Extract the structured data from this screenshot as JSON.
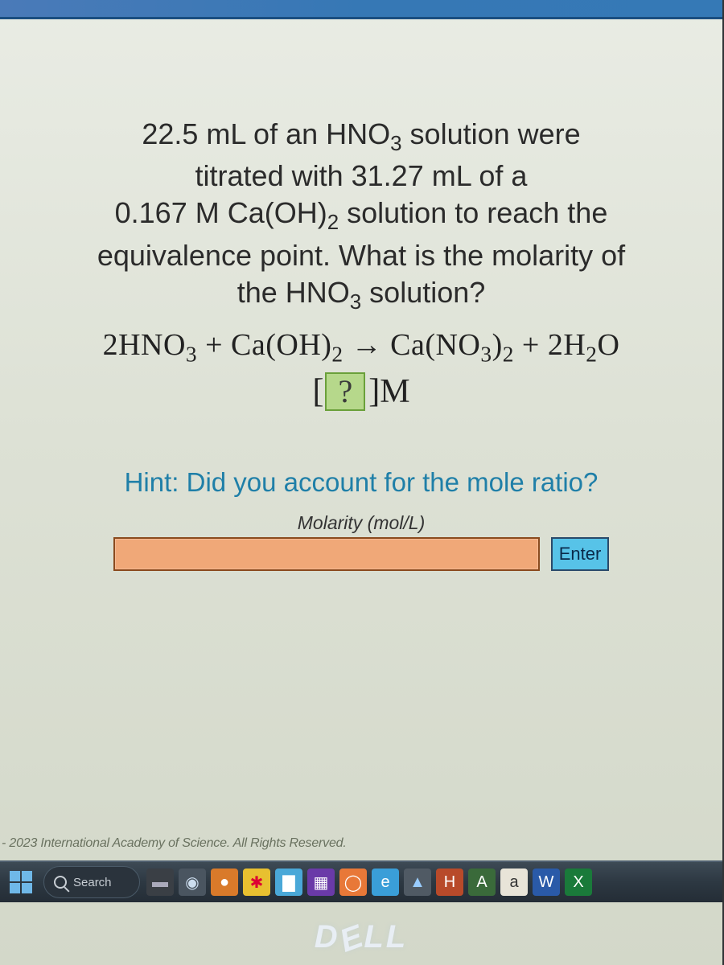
{
  "colors": {
    "card_bg_top": "#e9ece4",
    "card_bg_bottom": "#d3d8c9",
    "topbar": "#3678b5",
    "slot_bg": "#b6d88b",
    "slot_border": "#6aa03a",
    "hint_color": "#1f7fa8",
    "input_bg": "#f0a878",
    "input_border": "#8a4a1e",
    "enter_bg": "#57c3e8",
    "enter_border": "#2a4a6a",
    "taskbar_bg": "#2d3842"
  },
  "question": {
    "line1_a": "22.5 mL of an HNO",
    "line1_b": " solution were",
    "line2": "titrated with 31.27 mL of a",
    "line3_a": "0.167 M Ca(OH)",
    "line3_b": " solution to reach the",
    "line4": "equivalence point. What is the molarity of",
    "line5_a": "the HNO",
    "line5_b": " solution?",
    "sub3": "3",
    "sub2": "2"
  },
  "equation": {
    "p1": "2HNO",
    "p2": " + Ca(OH)",
    "arrow": " → ",
    "p3": "Ca(NO",
    "p4": ")",
    "p5": " + 2H",
    "p6": "O",
    "sub3": "3",
    "sub2": "2"
  },
  "slot": {
    "open": "[",
    "q": " ? ",
    "close": "]",
    "unit": "M"
  },
  "hint": "Hint: Did you account for the mole ratio?",
  "input": {
    "label": "Molarity (mol/L)",
    "value": "",
    "enter": "Enter"
  },
  "copyright": "- 2023 International Academy of Science. All Rights Reserved.",
  "taskbar": {
    "search": "Search"
  },
  "brand": "D✒LL",
  "brand_plain": "DELL",
  "tb_icons": [
    {
      "bg": "#3a3f45",
      "glyph": "▬",
      "fg": "#aab"
    },
    {
      "bg": "#4a5560",
      "glyph": "◉",
      "fg": "#cde"
    },
    {
      "bg": "#d97a2a",
      "glyph": "●",
      "fg": "#fff"
    },
    {
      "bg": "#e8c030",
      "glyph": "✱",
      "fg": "#d03"
    },
    {
      "bg": "#4aa8d8",
      "glyph": "▇",
      "fg": "#fff"
    },
    {
      "bg": "#6a3aa8",
      "glyph": "▦",
      "fg": "#fff"
    },
    {
      "bg": "#e87838",
      "glyph": "◯",
      "fg": "#fff"
    },
    {
      "bg": "#3a9ed8",
      "glyph": "e",
      "fg": "#fff"
    },
    {
      "bg": "#505a64",
      "glyph": "▲",
      "fg": "#9cf"
    },
    {
      "bg": "#b84a2a",
      "glyph": "H",
      "fg": "#fff"
    },
    {
      "bg": "#3a6a3a",
      "glyph": "A",
      "fg": "#fff"
    },
    {
      "bg": "#e8e4d8",
      "glyph": "a",
      "fg": "#333"
    },
    {
      "bg": "#2a5aa8",
      "glyph": "W",
      "fg": "#fff"
    },
    {
      "bg": "#1a7a3a",
      "glyph": "X",
      "fg": "#fff"
    }
  ]
}
